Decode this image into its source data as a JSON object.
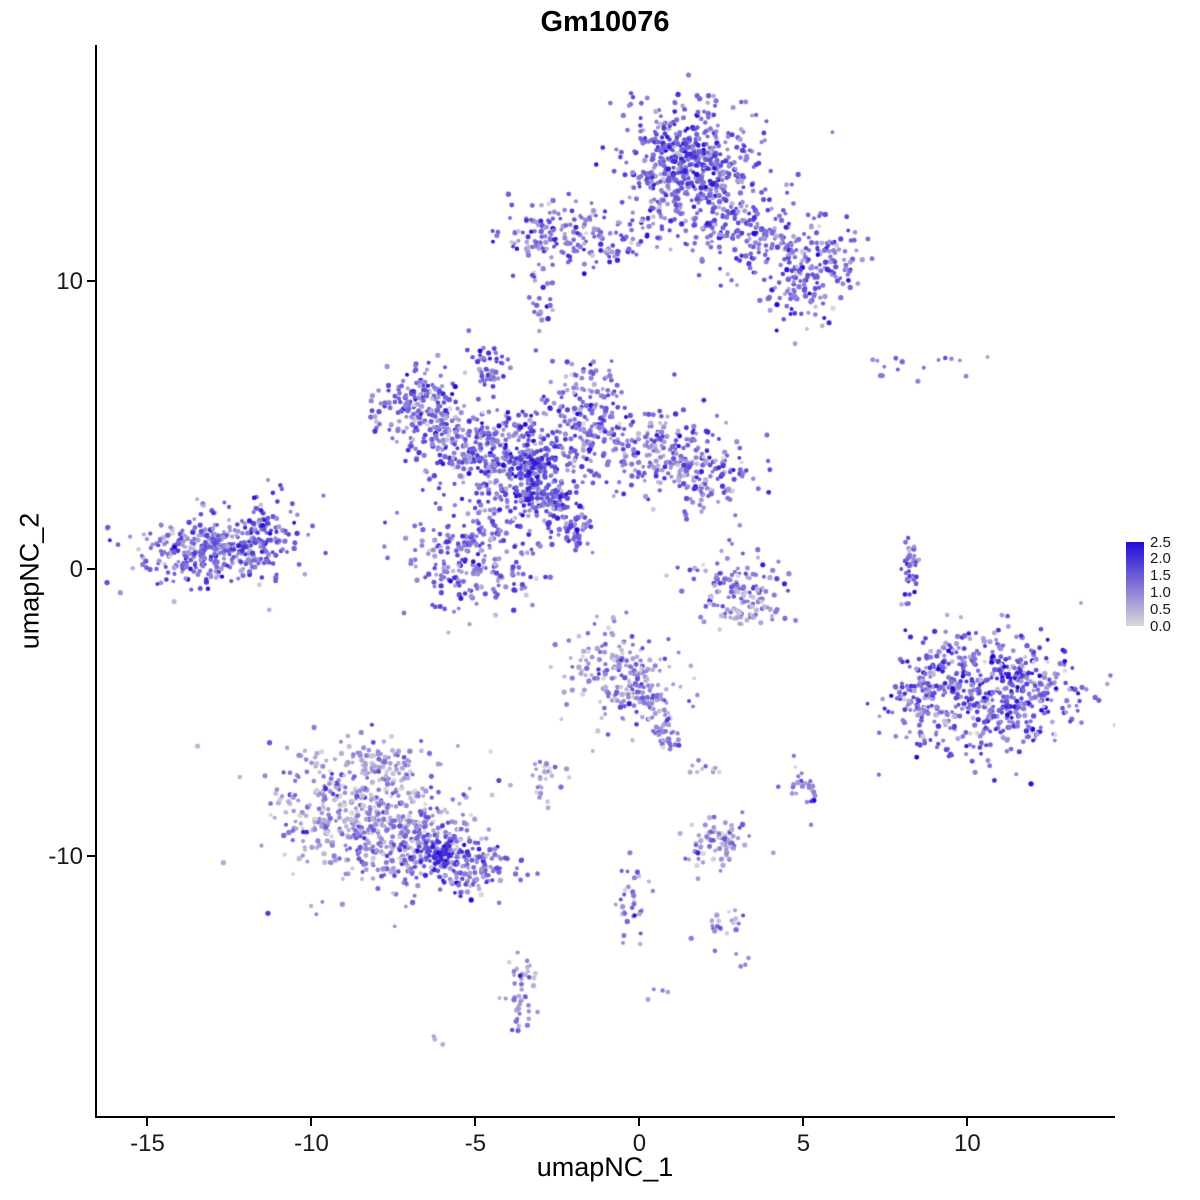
{
  "title": "Gm10076",
  "axes": {
    "x_label": "umapNC_1",
    "y_label": "umapNC_2",
    "x_ticks": [
      "-15",
      "-10",
      "-5",
      "0",
      "5",
      "10"
    ],
    "x_tick_values": [
      -15,
      -10,
      -5,
      0,
      5,
      10
    ],
    "y_ticks": [
      "-10",
      "0",
      "10"
    ],
    "y_tick_values": [
      -10,
      0,
      10
    ]
  },
  "legend": {
    "labels": [
      "2.5",
      "2.0",
      "1.5",
      "1.0",
      "0.5",
      "0.0"
    ],
    "values": [
      2.5,
      2.0,
      1.5,
      1.0,
      0.5,
      0.0
    ],
    "max_value": 2.5,
    "low_color": "#D8D8D8",
    "high_color": "#2309D8"
  },
  "chart_data": {
    "type": "scatter",
    "title": "Gm10076",
    "xlabel": "umapNC_1",
    "ylabel": "umapNC_2",
    "xlim": [
      -16.6,
      14.5
    ],
    "ylim": [
      -19.1,
      18.2
    ],
    "grid": false,
    "legend_position": "right",
    "point_radius": 2.3,
    "color_low": "#D8D8D8",
    "color_high": "#2309D8",
    "seed": 42,
    "cluster_fields": [
      "n",
      "cx",
      "cy",
      "sx",
      "sy",
      "expr_mean",
      "expr_sd"
    ],
    "clusters": [
      [
        480,
        1.6,
        14.0,
        1.0,
        1.1,
        0.55,
        0.2
      ],
      [
        80,
        1.3,
        14.3,
        0.5,
        0.6,
        0.7,
        0.15
      ],
      [
        170,
        3.3,
        11.7,
        0.9,
        0.8,
        0.55,
        0.2
      ],
      [
        140,
        5.3,
        10.7,
        0.7,
        0.6,
        0.55,
        0.2
      ],
      [
        50,
        5.0,
        9.2,
        0.5,
        0.5,
        0.5,
        0.2
      ],
      [
        120,
        -2.6,
        11.7,
        0.8,
        0.5,
        0.5,
        0.2
      ],
      [
        50,
        -1.1,
        11.3,
        0.6,
        0.4,
        0.5,
        0.2
      ],
      [
        35,
        0.7,
        11.9,
        0.9,
        0.35,
        0.5,
        0.2
      ],
      [
        14,
        -2.9,
        8.8,
        0.2,
        0.4,
        0.5,
        0.2
      ],
      [
        16,
        -3.1,
        10.2,
        0.3,
        0.7,
        0.45,
        0.2
      ],
      [
        45,
        -4.6,
        7.0,
        0.3,
        0.35,
        0.55,
        0.2
      ],
      [
        190,
        -6.7,
        5.6,
        0.7,
        0.75,
        0.5,
        0.22
      ],
      [
        150,
        -5.5,
        4.4,
        0.7,
        0.7,
        0.5,
        0.22
      ],
      [
        340,
        -3.8,
        3.6,
        0.9,
        0.9,
        0.58,
        0.22
      ],
      [
        70,
        -3.3,
        3.0,
        0.4,
        0.5,
        0.75,
        0.15
      ],
      [
        210,
        -1.4,
        4.9,
        0.9,
        0.85,
        0.5,
        0.22
      ],
      [
        170,
        0.7,
        3.9,
        0.9,
        0.8,
        0.48,
        0.22
      ],
      [
        110,
        2.2,
        3.3,
        0.7,
        0.6,
        0.48,
        0.22
      ],
      [
        60,
        -2.6,
        2.2,
        0.3,
        0.4,
        0.6,
        0.2
      ],
      [
        50,
        -2.0,
        1.4,
        0.3,
        0.4,
        0.55,
        0.2
      ],
      [
        250,
        -5.2,
        0.5,
        1.0,
        0.9,
        0.52,
        0.22
      ],
      [
        25,
        -1.6,
        6.6,
        0.5,
        0.4,
        0.45,
        0.2
      ],
      [
        360,
        -13.2,
        0.7,
        1.2,
        0.65,
        0.52,
        0.22
      ],
      [
        60,
        -11.5,
        1.2,
        0.5,
        0.4,
        0.58,
        0.2
      ],
      [
        12,
        -11.2,
        2.3,
        0.5,
        0.5,
        0.45,
        0.2
      ],
      [
        110,
        2.9,
        -0.5,
        0.7,
        0.6,
        0.42,
        0.22
      ],
      [
        45,
        3.2,
        -1.5,
        0.6,
        0.3,
        0.28,
        0.18
      ],
      [
        45,
        8.25,
        0.1,
        0.12,
        0.55,
        0.5,
        0.18
      ],
      [
        8,
        7.3,
        7.0,
        0.4,
        0.25,
        0.45,
        0.15
      ],
      [
        8,
        9.8,
        7.1,
        0.5,
        0.3,
        0.45,
        0.15
      ],
      [
        520,
        10.8,
        -4.3,
        1.3,
        1.1,
        0.55,
        0.25
      ],
      [
        85,
        8.4,
        -4.6,
        0.5,
        0.7,
        0.5,
        0.22
      ],
      [
        40,
        9.4,
        -3.1,
        0.45,
        0.4,
        0.5,
        0.22
      ],
      [
        560,
        -8.3,
        -8.6,
        1.35,
        1.15,
        0.3,
        0.2
      ],
      [
        190,
        -6.4,
        -9.8,
        0.9,
        0.7,
        0.45,
        0.22
      ],
      [
        55,
        -6.0,
        -9.9,
        0.3,
        0.3,
        0.8,
        0.15
      ],
      [
        80,
        -4.7,
        -10.5,
        0.6,
        0.5,
        0.5,
        0.2
      ],
      [
        40,
        -7.4,
        -6.6,
        0.7,
        0.4,
        0.32,
        0.18
      ],
      [
        190,
        -0.5,
        -3.7,
        0.8,
        0.85,
        0.35,
        0.2
      ],
      [
        55,
        0.4,
        -4.9,
        0.4,
        0.5,
        0.38,
        0.2
      ],
      [
        22,
        0.9,
        -5.9,
        0.25,
        0.3,
        0.38,
        0.18
      ],
      [
        28,
        -2.8,
        -7.2,
        0.3,
        0.45,
        0.3,
        0.18
      ],
      [
        85,
        2.5,
        -9.6,
        0.5,
        0.55,
        0.3,
        0.2
      ],
      [
        24,
        5.0,
        -7.7,
        0.25,
        0.45,
        0.45,
        0.2
      ],
      [
        32,
        -0.2,
        -11.6,
        0.3,
        0.7,
        0.4,
        0.2
      ],
      [
        20,
        2.4,
        -12.5,
        0.4,
        0.3,
        0.35,
        0.18
      ],
      [
        45,
        -3.6,
        -14.7,
        0.3,
        0.7,
        0.3,
        0.18
      ],
      [
        3,
        -6.1,
        -16.4,
        0.15,
        0.15,
        0.35,
        0.1
      ],
      [
        4,
        0.4,
        -14.9,
        0.2,
        0.2,
        0.3,
        0.1
      ],
      [
        4,
        3.2,
        -13.6,
        0.15,
        0.15,
        0.35,
        0.1
      ],
      [
        10,
        1.9,
        -6.9,
        0.3,
        0.3,
        0.35,
        0.15
      ]
    ]
  }
}
